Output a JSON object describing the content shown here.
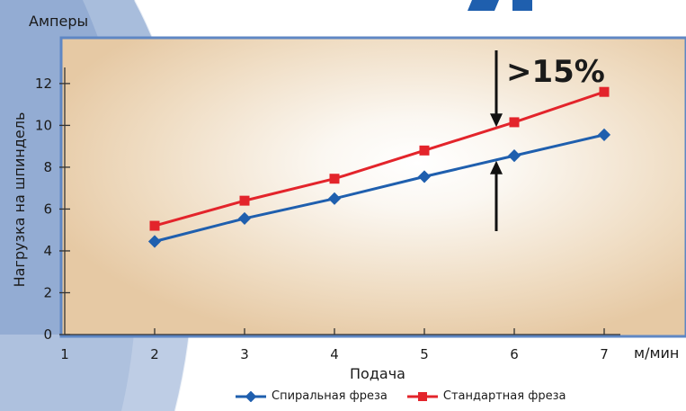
{
  "chart_data": {
    "type": "line",
    "unit_label": "Амперы",
    "ylabel": "Нагрузка на шпиндель",
    "xlabel": "Подача",
    "x_unit": "м/мин",
    "annotation": ">15%",
    "xlim": [
      1,
      7
    ],
    "ylim": [
      0,
      13.5
    ],
    "x_ticks": [
      1,
      2,
      3,
      4,
      5,
      6,
      7
    ],
    "y_ticks": [
      0,
      2,
      4,
      6,
      8,
      10,
      12
    ],
    "grid": false,
    "legend_position": "bottom",
    "series": [
      {
        "name": "Спиральная фреза",
        "color": "#1f5fae",
        "marker": "diamond",
        "x": [
          2,
          3,
          4,
          5,
          6,
          7
        ],
        "y": [
          4.45,
          5.55,
          6.5,
          7.55,
          8.55,
          9.55
        ]
      },
      {
        "name": "Стандартная фреза",
        "color": "#e3242b",
        "marker": "square",
        "x": [
          2,
          3,
          4,
          5,
          6,
          7
        ],
        "y": [
          5.2,
          6.4,
          7.45,
          8.8,
          10.15,
          11.6
        ]
      }
    ]
  }
}
